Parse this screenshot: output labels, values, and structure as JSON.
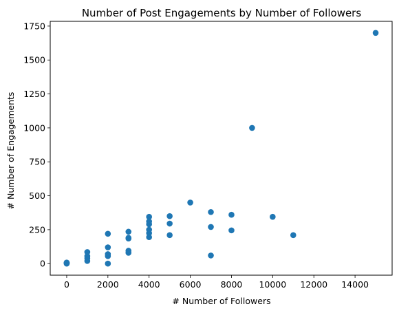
{
  "chart_data": {
    "type": "scatter",
    "title": "Number of Post Engagements by Number of Followers",
    "xlabel": "# Number of Followers",
    "ylabel": "# Number of Engagements",
    "xlim": [
      -800,
      15800
    ],
    "ylim": [
      -85,
      1785
    ],
    "xticks": [
      0,
      2000,
      4000,
      6000,
      8000,
      10000,
      12000,
      14000
    ],
    "yticks": [
      0,
      250,
      500,
      750,
      1000,
      1250,
      1500,
      1750
    ],
    "grid": false,
    "marker_color": "#1f77b4",
    "points": [
      {
        "x": 0,
        "y": 0
      },
      {
        "x": 0,
        "y": 2
      },
      {
        "x": 0,
        "y": 4
      },
      {
        "x": 0,
        "y": 6
      },
      {
        "x": 0,
        "y": 8
      },
      {
        "x": 1000,
        "y": 20
      },
      {
        "x": 1000,
        "y": 40
      },
      {
        "x": 1000,
        "y": 55
      },
      {
        "x": 1000,
        "y": 85
      },
      {
        "x": 2000,
        "y": 0
      },
      {
        "x": 2000,
        "y": 55
      },
      {
        "x": 2000,
        "y": 70
      },
      {
        "x": 2000,
        "y": 120
      },
      {
        "x": 2000,
        "y": 220
      },
      {
        "x": 3000,
        "y": 80
      },
      {
        "x": 3000,
        "y": 95
      },
      {
        "x": 3000,
        "y": 185
      },
      {
        "x": 3000,
        "y": 190
      },
      {
        "x": 3000,
        "y": 235
      },
      {
        "x": 4000,
        "y": 195
      },
      {
        "x": 4000,
        "y": 225
      },
      {
        "x": 4000,
        "y": 250
      },
      {
        "x": 4000,
        "y": 290
      },
      {
        "x": 4000,
        "y": 310
      },
      {
        "x": 4000,
        "y": 345
      },
      {
        "x": 5000,
        "y": 210
      },
      {
        "x": 5000,
        "y": 295
      },
      {
        "x": 5000,
        "y": 350
      },
      {
        "x": 6000,
        "y": 450
      },
      {
        "x": 7000,
        "y": 60
      },
      {
        "x": 7000,
        "y": 270
      },
      {
        "x": 7000,
        "y": 380
      },
      {
        "x": 8000,
        "y": 245
      },
      {
        "x": 8000,
        "y": 360
      },
      {
        "x": 9000,
        "y": 1000
      },
      {
        "x": 10000,
        "y": 345
      },
      {
        "x": 11000,
        "y": 210
      },
      {
        "x": 15000,
        "y": 1700
      }
    ]
  }
}
